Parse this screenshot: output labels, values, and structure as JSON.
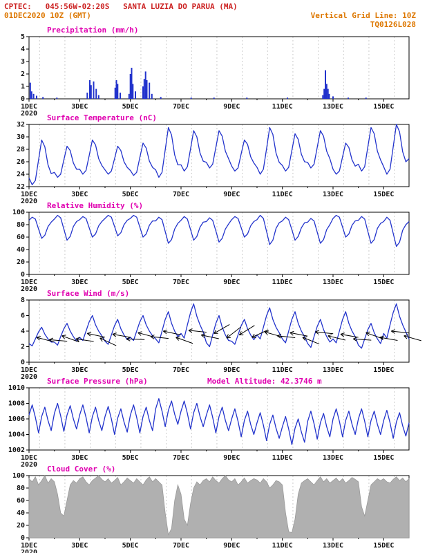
{
  "header": {
    "line1": "CPTEC:   045:56W-02:20S   SANTA LUZIA DO PARUA (MA)",
    "line2_left": "01DEC2020 10Z (GMT)",
    "line2_right": "Vertical Grid Line: 10Z",
    "line3_right": "TQ0126L028"
  },
  "colors": {
    "header_red": "#cc2222",
    "header_orange": "#dd7700",
    "title_magenta": "#e000b0",
    "series_blue": "#2233cc",
    "cloud_gray": "#b0b0b0",
    "arrow_black": "#000000",
    "grid_gray": "#cccccc"
  },
  "x_axis": {
    "start": 1,
    "end": 16,
    "grid_hour_utc": 10,
    "year_label": "2020",
    "major_ticks": [
      {
        "day": 1,
        "label": "1DEC"
      },
      {
        "day": 3,
        "label": "3DEC"
      },
      {
        "day": 5,
        "label": "5DEC"
      },
      {
        "day": 7,
        "label": "7DEC"
      },
      {
        "day": 9,
        "label": "9DEC"
      },
      {
        "day": 11,
        "label": "11DEC"
      },
      {
        "day": 13,
        "label": "13DEC"
      },
      {
        "day": 15,
        "label": "15DEC"
      }
    ],
    "minor_days": [
      2,
      4,
      6,
      8,
      10,
      12,
      14
    ]
  },
  "chart_data": [
    {
      "name": "precipitation",
      "type": "bar",
      "title": "Precipitation (mm/h)",
      "ylim": [
        0,
        5
      ],
      "yticks": [
        0,
        1,
        2,
        3,
        4,
        5
      ],
      "color": "#2233cc",
      "bars": [
        {
          "t": 1.05,
          "v": 1.3
        },
        {
          "t": 1.1,
          "v": 0.6
        },
        {
          "t": 1.18,
          "v": 0.4
        },
        {
          "t": 1.3,
          "v": 0.25
        },
        {
          "t": 1.55,
          "v": 0.15
        },
        {
          "t": 2.1,
          "v": 0.1
        },
        {
          "t": 3.3,
          "v": 0.5
        },
        {
          "t": 3.4,
          "v": 1.5
        },
        {
          "t": 3.45,
          "v": 1.1
        },
        {
          "t": 3.55,
          "v": 1.4
        },
        {
          "t": 3.65,
          "v": 0.8
        },
        {
          "t": 3.75,
          "v": 0.3
        },
        {
          "t": 4.4,
          "v": 0.9
        },
        {
          "t": 4.45,
          "v": 1.5
        },
        {
          "t": 4.5,
          "v": 1.2
        },
        {
          "t": 4.6,
          "v": 0.5
        },
        {
          "t": 4.95,
          "v": 0.4
        },
        {
          "t": 5.0,
          "v": 2.0
        },
        {
          "t": 5.05,
          "v": 2.5
        },
        {
          "t": 5.1,
          "v": 1.2
        },
        {
          "t": 5.2,
          "v": 0.6
        },
        {
          "t": 5.5,
          "v": 1.0
        },
        {
          "t": 5.55,
          "v": 1.6
        },
        {
          "t": 5.6,
          "v": 2.2
        },
        {
          "t": 5.65,
          "v": 1.5
        },
        {
          "t": 5.75,
          "v": 1.3
        },
        {
          "t": 5.85,
          "v": 0.4
        },
        {
          "t": 6.2,
          "v": 0.15
        },
        {
          "t": 7.4,
          "v": 0.1
        },
        {
          "t": 8.3,
          "v": 0.1
        },
        {
          "t": 9.6,
          "v": 0.1
        },
        {
          "t": 11.2,
          "v": 0.1
        },
        {
          "t": 12.6,
          "v": 0.3
        },
        {
          "t": 12.65,
          "v": 0.8
        },
        {
          "t": 12.7,
          "v": 2.3
        },
        {
          "t": 12.75,
          "v": 1.2
        },
        {
          "t": 12.8,
          "v": 0.8
        },
        {
          "t": 12.85,
          "v": 0.4
        },
        {
          "t": 13.0,
          "v": 0.2
        },
        {
          "t": 13.6,
          "v": 0.1
        },
        {
          "t": 14.3,
          "v": 0.1
        }
      ]
    },
    {
      "name": "temperature",
      "type": "line",
      "title": "Surface Temperature (nC)",
      "ylim": [
        22,
        32
      ],
      "yticks": [
        22,
        24,
        26,
        28,
        30,
        32
      ],
      "color": "#2233cc",
      "series": {
        "t0": 1,
        "dt": 0.125,
        "values": [
          23.4,
          22.3,
          23.0,
          26.3,
          29.5,
          28.4,
          25.5,
          24.1,
          24.3,
          23.5,
          24.0,
          26.3,
          28.5,
          27.8,
          25.8,
          24.8,
          24.8,
          24.0,
          24.6,
          27.0,
          29.5,
          28.7,
          26.5,
          25.4,
          24.7,
          24.0,
          24.5,
          26.5,
          28.5,
          27.8,
          26.0,
          25.1,
          24.6,
          23.8,
          24.3,
          26.7,
          29.0,
          28.2,
          26.1,
          25.1,
          24.7,
          23.5,
          24.3,
          27.9,
          31.5,
          30.3,
          27.1,
          25.5,
          25.5,
          24.5,
          25.2,
          28.1,
          31.0,
          30.0,
          27.4,
          26.1,
          25.9,
          25.0,
          25.6,
          28.3,
          31.0,
          30.1,
          27.7,
          26.5,
          25.3,
          24.5,
          25.0,
          27.3,
          29.5,
          28.8,
          26.8,
          25.8,
          25.1,
          24.0,
          24.8,
          28.1,
          31.5,
          30.4,
          27.4,
          25.9,
          25.4,
          24.5,
          25.1,
          27.8,
          30.5,
          29.6,
          27.2,
          26.0,
          25.9,
          25.0,
          25.6,
          28.3,
          31.0,
          30.1,
          27.7,
          26.5,
          24.8,
          24.0,
          24.5,
          26.8,
          29.0,
          28.3,
          26.3,
          25.3,
          25.6,
          24.5,
          25.2,
          28.4,
          31.5,
          30.5,
          27.7,
          26.3,
          25.2,
          24.0,
          24.8,
          28.4,
          32.0,
          30.8,
          27.6,
          26.0,
          26.5
        ]
      }
    },
    {
      "name": "humidity",
      "type": "line",
      "title": "Relative Humidity (%)",
      "ylim": [
        0,
        100
      ],
      "yticks": [
        0,
        20,
        40,
        60,
        80,
        100
      ],
      "color": "#2233cc",
      "series": {
        "t0": 1,
        "dt": 0.125,
        "values": [
          87,
          92,
          89,
          73,
          58,
          63,
          77,
          84,
          89,
          95,
          91,
          73,
          55,
          61,
          77,
          85,
          88,
          93,
          90,
          75,
          60,
          65,
          78,
          85,
          90,
          95,
          92,
          77,
          62,
          67,
          80,
          87,
          90,
          95,
          92,
          76,
          60,
          65,
          79,
          86,
          86,
          92,
          88,
          69,
          50,
          56,
          73,
          82,
          87,
          93,
          89,
          72,
          55,
          61,
          76,
          84,
          85,
          91,
          87,
          70,
          52,
          58,
          73,
          81,
          88,
          93,
          90,
          75,
          60,
          65,
          78,
          85,
          88,
          95,
          90,
          69,
          48,
          55,
          74,
          83,
          86,
          92,
          88,
          72,
          55,
          61,
          75,
          83,
          84,
          90,
          86,
          68,
          50,
          56,
          72,
          80,
          90,
          95,
          92,
          76,
          60,
          65,
          79,
          86,
          87,
          93,
          89,
          69,
          50,
          56,
          74,
          82,
          85,
          92,
          87,
          66,
          45,
          52,
          71,
          80,
          85
        ]
      }
    },
    {
      "name": "wind",
      "type": "line",
      "title": "Surface Wind (m/s)",
      "ylim": [
        0,
        8
      ],
      "yticks": [
        0,
        2,
        4,
        6,
        8
      ],
      "color": "#2233cc",
      "series": {
        "t0": 1,
        "dt": 0.125,
        "values": [
          2.4,
          2.1,
          3.0,
          3.9,
          4.5,
          3.6,
          3.0,
          2.6,
          2.6,
          2.2,
          3.3,
          4.3,
          5.0,
          4.0,
          3.3,
          2.7,
          3.2,
          2.8,
          4.0,
          5.2,
          6.0,
          4.8,
          4.0,
          3.4,
          2.7,
          2.3,
          3.5,
          4.7,
          5.5,
          4.3,
          3.5,
          2.9,
          3.2,
          2.8,
          4.0,
          5.2,
          6.0,
          4.8,
          4.0,
          3.4,
          3.0,
          2.5,
          4.0,
          5.5,
          6.5,
          5.0,
          4.0,
          3.3,
          3.7,
          3.1,
          4.8,
          6.4,
          7.5,
          5.9,
          4.8,
          3.9,
          2.5,
          2.0,
          3.5,
          5.0,
          6.0,
          4.5,
          3.5,
          2.8,
          2.7,
          2.3,
          3.5,
          4.7,
          5.5,
          4.3,
          3.5,
          2.9,
          3.5,
          3.0,
          4.5,
          6.0,
          7.0,
          5.5,
          4.5,
          3.8,
          3.0,
          2.5,
          4.0,
          5.5,
          6.5,
          5.0,
          4.0,
          3.3,
          2.4,
          1.9,
          3.3,
          4.6,
          5.5,
          4.2,
          3.3,
          2.6,
          3.0,
          2.5,
          4.0,
          5.5,
          6.5,
          5.0,
          4.0,
          3.3,
          2.2,
          1.8,
          3.0,
          4.2,
          5.0,
          3.8,
          3.0,
          2.4,
          3.7,
          3.1,
          4.8,
          6.4,
          7.5,
          5.9,
          4.8,
          3.9,
          3.0
        ]
      },
      "arrows": [
        {
          "t": 1.3,
          "y": 3.2,
          "ang": 195
        },
        {
          "t": 1.8,
          "y": 2.9,
          "ang": 185
        },
        {
          "t": 2.3,
          "y": 3.4,
          "ang": 200
        },
        {
          "t": 2.85,
          "y": 3.0,
          "ang": 188
        },
        {
          "t": 3.3,
          "y": 3.7,
          "ang": 192
        },
        {
          "t": 3.8,
          "y": 3.1,
          "ang": 205
        },
        {
          "t": 4.3,
          "y": 3.6,
          "ang": 190
        },
        {
          "t": 4.85,
          "y": 3.0,
          "ang": 182
        },
        {
          "t": 5.3,
          "y": 3.8,
          "ang": 195
        },
        {
          "t": 5.8,
          "y": 3.3,
          "ang": 186
        },
        {
          "t": 6.3,
          "y": 4.0,
          "ang": 192
        },
        {
          "t": 6.8,
          "y": 3.2,
          "ang": 200
        },
        {
          "t": 7.3,
          "y": 4.1,
          "ang": 186
        },
        {
          "t": 7.8,
          "y": 3.5,
          "ang": 192
        },
        {
          "t": 8.3,
          "y": 3.7,
          "ang": 150
        },
        {
          "t": 8.8,
          "y": 3.1,
          "ang": 142
        },
        {
          "t": 9.3,
          "y": 3.5,
          "ang": 148
        },
        {
          "t": 9.8,
          "y": 3.2,
          "ang": 155
        },
        {
          "t": 10.3,
          "y": 3.9,
          "ang": 196
        },
        {
          "t": 10.8,
          "y": 3.4,
          "ang": 186
        },
        {
          "t": 11.3,
          "y": 3.8,
          "ang": 191
        },
        {
          "t": 11.8,
          "y": 3.2,
          "ang": 202
        },
        {
          "t": 12.3,
          "y": 3.9,
          "ang": 186
        },
        {
          "t": 12.8,
          "y": 3.4,
          "ang": 194
        },
        {
          "t": 13.3,
          "y": 3.6,
          "ang": 190
        },
        {
          "t": 13.8,
          "y": 3.0,
          "ang": 184
        },
        {
          "t": 14.3,
          "y": 3.8,
          "ang": 200
        },
        {
          "t": 14.85,
          "y": 3.2,
          "ang": 190
        },
        {
          "t": 15.3,
          "y": 4.0,
          "ang": 186
        },
        {
          "t": 15.8,
          "y": 3.4,
          "ang": 196
        }
      ]
    },
    {
      "name": "pressure",
      "type": "line",
      "title": "Surface Pressure (hPa)",
      "extra_label": "Model Altitude: 42.3746 m",
      "ylim": [
        1002,
        1010
      ],
      "yticks": [
        1002,
        1004,
        1006,
        1008,
        1010
      ],
      "color": "#2233cc",
      "series": {
        "t0": 1,
        "dt": 0.125,
        "values": [
          1006.5,
          1007.8,
          1006.2,
          1004.2,
          1006.3,
          1007.5,
          1005.8,
          1004.5,
          1006.7,
          1008.0,
          1006.4,
          1004.4,
          1006.5,
          1007.7,
          1006.0,
          1004.7,
          1006.5,
          1007.8,
          1006.2,
          1004.2,
          1006.3,
          1007.5,
          1005.8,
          1004.5,
          1006.3,
          1007.6,
          1006.0,
          1004.0,
          1006.1,
          1007.3,
          1005.6,
          1004.3,
          1006.5,
          1007.8,
          1006.2,
          1004.2,
          1006.3,
          1007.5,
          1005.8,
          1004.5,
          1007.3,
          1008.6,
          1007.0,
          1005.0,
          1007.1,
          1008.3,
          1006.6,
          1005.3,
          1007.0,
          1008.3,
          1006.7,
          1004.7,
          1006.8,
          1008.0,
          1006.3,
          1005.0,
          1006.5,
          1007.8,
          1006.2,
          1004.2,
          1006.3,
          1007.5,
          1005.8,
          1004.5,
          1006.0,
          1007.3,
          1005.7,
          1003.7,
          1005.8,
          1007.0,
          1005.3,
          1004.0,
          1005.5,
          1006.8,
          1005.2,
          1003.2,
          1005.3,
          1006.5,
          1004.8,
          1003.5,
          1005.0,
          1006.3,
          1004.7,
          1002.7,
          1004.8,
          1006.0,
          1004.3,
          1003.0,
          1005.7,
          1007.0,
          1005.4,
          1003.4,
          1005.5,
          1006.7,
          1005.0,
          1003.7,
          1006.0,
          1007.3,
          1005.7,
          1003.7,
          1005.8,
          1007.0,
          1005.3,
          1004.0,
          1006.0,
          1007.3,
          1005.7,
          1003.7,
          1005.8,
          1007.0,
          1005.3,
          1004.0,
          1005.8,
          1007.1,
          1005.5,
          1003.5,
          1005.6,
          1006.8,
          1005.1,
          1003.8,
          1005.5
        ]
      }
    },
    {
      "name": "cloud-cover",
      "type": "area",
      "title": "Cloud Cover (%)",
      "ylim": [
        0,
        100
      ],
      "yticks": [
        0,
        20,
        40,
        60,
        80,
        100
      ],
      "color": "#b0b0b0",
      "stroke": "#999999",
      "series": {
        "t0": 1,
        "dt": 0.125,
        "values": [
          95,
          90,
          98,
          85,
          92,
          100,
          88,
          95,
          90,
          70,
          40,
          35,
          60,
          85,
          92,
          88,
          95,
          98,
          90,
          85,
          92,
          96,
          100,
          94,
          90,
          95,
          88,
          92,
          97,
          85,
          90,
          96,
          92,
          88,
          95,
          90,
          85,
          93,
          98,
          90,
          95,
          90,
          85,
          40,
          5,
          15,
          60,
          85,
          70,
          30,
          20,
          55,
          80,
          90,
          85,
          92,
          95,
          90,
          98,
          92,
          88,
          95,
          100,
          93,
          90,
          95,
          85,
          90,
          96,
          88,
          92,
          95,
          93,
          88,
          95,
          90,
          80,
          85,
          92,
          90,
          85,
          40,
          10,
          8,
          30,
          70,
          88,
          92,
          95,
          90,
          85,
          92,
          98,
          90,
          95,
          88,
          92,
          96,
          90,
          95,
          88,
          92,
          97,
          94,
          90,
          50,
          35,
          60,
          85,
          90,
          95,
          92,
          95,
          90,
          88,
          94,
          98,
          92,
          96,
          90,
          95
        ]
      }
    }
  ]
}
